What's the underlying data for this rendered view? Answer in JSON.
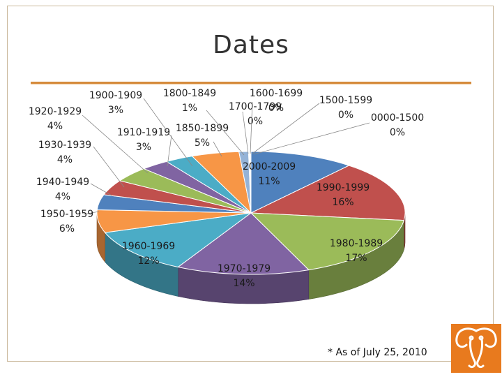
{
  "slide": {
    "title": "Dates",
    "footnote": "* As of July 25, 2010"
  },
  "colors": {
    "rule": "#d58a3b",
    "logo_background": "#e87a1e"
  },
  "logo": {
    "icon": "elephant-icon"
  },
  "chart_data": {
    "type": "pie",
    "title": "",
    "style": "3d-exploded",
    "legend": "none",
    "slices": [
      {
        "label": "2000-2009",
        "value_label": "11%",
        "value": 11,
        "color": "#4f81bd"
      },
      {
        "label": "1990-1999",
        "value_label": "16%",
        "value": 16,
        "color": "#c0504d"
      },
      {
        "label": "1980-1989",
        "value_label": "17%",
        "value": 17,
        "color": "#9bbb59"
      },
      {
        "label": "1970-1979",
        "value_label": "14%",
        "value": 14,
        "color": "#8064a2"
      },
      {
        "label": "1960-1969",
        "value_label": "12%",
        "value": 12,
        "color": "#4bacc6"
      },
      {
        "label": "1950-1959",
        "value_label": "6%",
        "value": 6,
        "color": "#f79646"
      },
      {
        "label": "1940-1949",
        "value_label": "4%",
        "value": 4,
        "color": "#4f81bd"
      },
      {
        "label": "1930-1939",
        "value_label": "4%",
        "value": 4,
        "color": "#c0504d"
      },
      {
        "label": "1920-1929",
        "value_label": "4%",
        "value": 4,
        "color": "#9bbb59"
      },
      {
        "label": "1910-1919",
        "value_label": "3%",
        "value": 3,
        "color": "#8064a2"
      },
      {
        "label": "1900-1909",
        "value_label": "3%",
        "value": 3,
        "color": "#4bacc6"
      },
      {
        "label": "1850-1899",
        "value_label": "5%",
        "value": 5,
        "color": "#f79646"
      },
      {
        "label": "1800-1849",
        "value_label": "1%",
        "value": 1,
        "color": "#95b3d7"
      },
      {
        "label": "1700-1799",
        "value_label": "0%",
        "value": 0,
        "color": "#d99694"
      },
      {
        "label": "1600-1699",
        "value_label": "0%",
        "value": 0,
        "color": "#c3d69b"
      },
      {
        "label": "1500-1599",
        "value_label": "0%",
        "value": 0,
        "color": "#b2a2c7"
      },
      {
        "label": "0000-1500",
        "value_label": "0%",
        "value": 0,
        "color": "#93cddd"
      }
    ]
  }
}
